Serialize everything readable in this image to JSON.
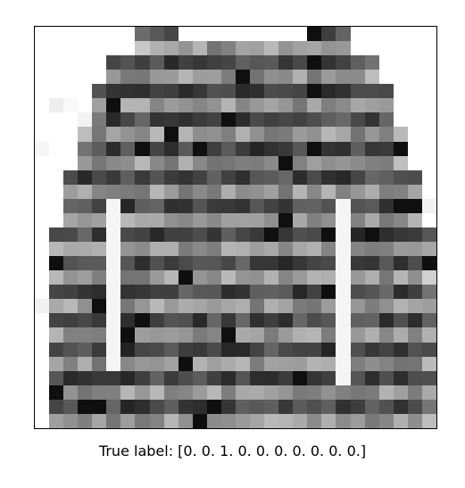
{
  "figure": {
    "caption": "True label: [0. 0. 1. 0. 0. 0. 0. 0. 0. 0.]",
    "image_kind": "grayscale sweater (Fashion-MNIST sample)",
    "colors": {
      "background": "#ffffff",
      "frame": "#000000"
    }
  }
}
